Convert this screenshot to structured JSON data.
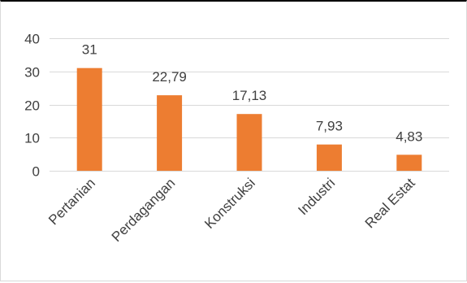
{
  "chart_data": {
    "type": "bar",
    "categories": [
      "Pertanian",
      "Perdagangan",
      "Konstruksi",
      "Industri",
      "Real Estat"
    ],
    "values": [
      31,
      22.79,
      17.13,
      7.93,
      4.83
    ],
    "data_labels": [
      "31",
      "22,79",
      "17,13",
      "7,93",
      "4,83"
    ],
    "y_ticks": [
      0,
      10,
      20,
      30,
      40
    ],
    "y_tick_labels": [
      "0",
      "10",
      "20",
      "30",
      "40"
    ],
    "ylim": [
      0,
      40
    ],
    "title": "",
    "xlabel": "",
    "ylabel": "",
    "grid": true,
    "legend": "none",
    "bar_color": "#ED7D31",
    "grid_color": "#D9D9D9",
    "text_color": "#404040"
  }
}
